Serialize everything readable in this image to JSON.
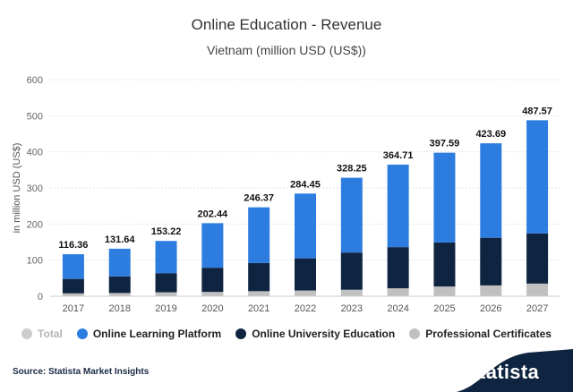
{
  "chart_data": {
    "type": "bar",
    "title": "Online Education - Revenue",
    "subtitle": "Vietnam (million USD (US$))",
    "ylabel": "in million USD (US$)",
    "xlabel": "",
    "ylim": [
      0,
      600
    ],
    "yticks": [
      0,
      100,
      200,
      300,
      400,
      500,
      600
    ],
    "categories": [
      "2017",
      "2018",
      "2019",
      "2020",
      "2021",
      "2022",
      "2023",
      "2024",
      "2025",
      "2026",
      "2027"
    ],
    "totals": [
      116.36,
      131.64,
      153.22,
      202.44,
      246.37,
      284.45,
      328.25,
      364.71,
      397.59,
      423.69,
      487.57
    ],
    "total_labels": [
      "116.36",
      "131.64",
      "153.22",
      "202.44",
      "246.37",
      "284.45",
      "328.25",
      "364.71",
      "397.59",
      "423.69",
      "487.57"
    ],
    "series": [
      {
        "name": "Professional Certificates",
        "color": "#c0c0c0",
        "values": [
          8,
          9,
          11,
          12,
          14,
          16,
          18,
          22,
          27,
          30,
          35
        ]
      },
      {
        "name": "Online University Education",
        "color": "#0f2440",
        "values": [
          40,
          46,
          53,
          67,
          78,
          89,
          103,
          114,
          122,
          132,
          139
        ]
      },
      {
        "name": "Online Learning Platform",
        "color": "#2d7de0",
        "values": [
          68.36,
          76.64,
          89.22,
          123.44,
          154.37,
          179.45,
          207.25,
          228.71,
          248.59,
          261.69,
          313.57
        ]
      }
    ],
    "grid": true,
    "legend_position": "bottom"
  },
  "legend": {
    "total": {
      "label": "Total",
      "color": "#cccccc"
    },
    "platform": {
      "label": "Online Learning Platform",
      "color": "#2d7de0"
    },
    "university": {
      "label": "Online University Education",
      "color": "#0f2440"
    },
    "certificates": {
      "label": "Professional Certificates",
      "color": "#c0c0c0"
    }
  },
  "footer": {
    "source": "Source: Statista Market Insights",
    "brand": "statista",
    "brand_color": "#0f2440"
  }
}
